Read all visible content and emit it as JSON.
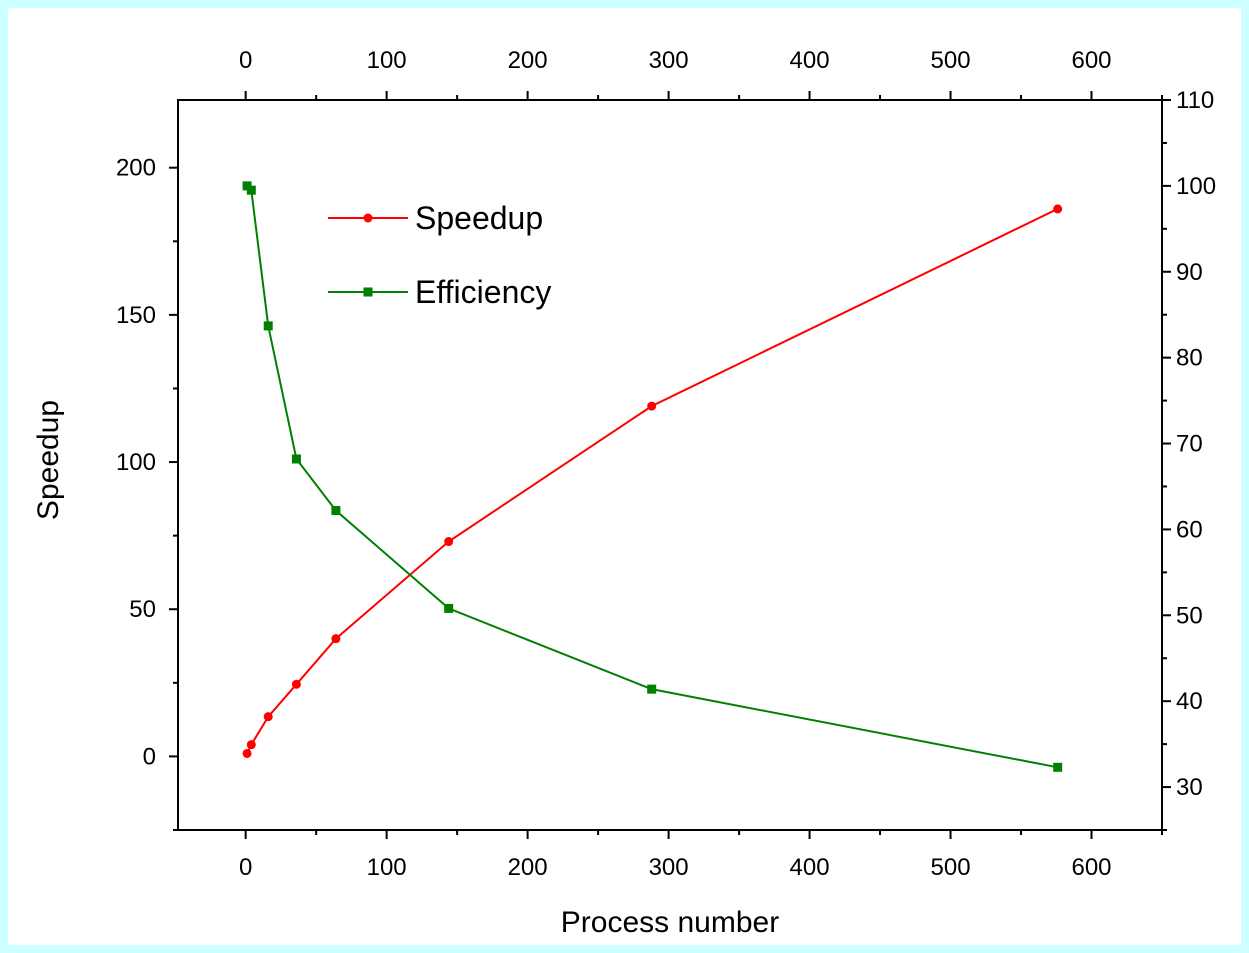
{
  "chart_data": {
    "type": "line",
    "title": "",
    "xlabel": "Process number",
    "ylabel": "Speedup",
    "y2label": "",
    "xlim": [
      -48,
      650
    ],
    "ylim": [
      -25,
      223
    ],
    "y2lim": [
      25,
      110
    ],
    "x_ticks": [
      0,
      100,
      200,
      300,
      400,
      500,
      600
    ],
    "y_ticks": [
      0,
      50,
      100,
      150,
      200
    ],
    "y2_ticks": [
      30,
      40,
      50,
      60,
      70,
      80,
      90,
      100,
      110
    ],
    "grid": false,
    "legend_position": "top-left",
    "series": [
      {
        "name": "Speedup",
        "axis": "left",
        "color": "#ff0000",
        "marker": "circle",
        "x": [
          1,
          4,
          16,
          36,
          64,
          144,
          288,
          576
        ],
        "values": [
          1,
          4,
          13.5,
          24.5,
          40,
          73,
          119,
          186
        ]
      },
      {
        "name": "Efficiency",
        "axis": "right",
        "color": "#008000",
        "marker": "square",
        "x": [
          1,
          4,
          16,
          36,
          64,
          144,
          288,
          576
        ],
        "values": [
          100,
          99.5,
          83.7,
          68.2,
          62.2,
          50.8,
          41.4,
          32.3
        ]
      }
    ]
  }
}
